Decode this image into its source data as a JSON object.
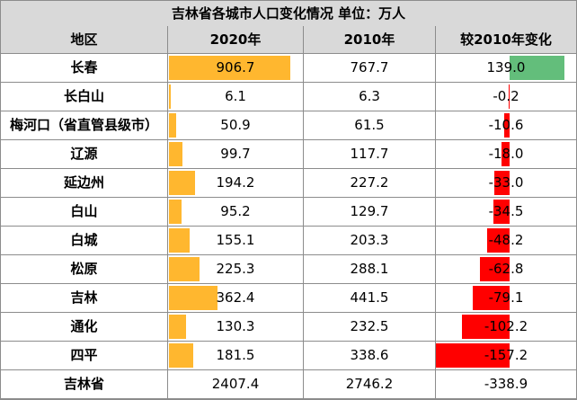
{
  "title": "吉林省各城市人口变化情况  单位：万人",
  "headers": [
    "地区",
    "2020年",
    "2010年",
    "较2010年变化"
  ],
  "rows": [
    {
      "region": "长春",
      "y2020": "906.7",
      "y2010": "767.7",
      "change": "139.0",
      "bar2020": 906.7,
      "barChange": 139.0
    },
    {
      "region": "长白山",
      "y2020": "6.1",
      "y2010": "6.3",
      "change": "-0.2",
      "bar2020": 6.1,
      "barChange": -0.2
    },
    {
      "region": "梅河口（省直管县级市）",
      "y2020": "50.9",
      "y2010": "61.5",
      "change": "-10.6",
      "bar2020": 50.9,
      "barChange": -10.6
    },
    {
      "region": "辽源",
      "y2020": "99.7",
      "y2010": "117.7",
      "change": "-18.0",
      "bar2020": 99.7,
      "barChange": -18.0
    },
    {
      "region": "延边州",
      "y2020": "194.2",
      "y2010": "227.2",
      "change": "-33.0",
      "bar2020": 194.2,
      "barChange": -33.0
    },
    {
      "region": "白山",
      "y2020": "95.2",
      "y2010": "129.7",
      "change": "-34.5",
      "bar2020": 95.2,
      "barChange": -34.5
    },
    {
      "region": "白城",
      "y2020": "155.1",
      "y2010": "203.3",
      "change": "-48.2",
      "bar2020": 155.1,
      "barChange": -48.2
    },
    {
      "region": "松原",
      "y2020": "225.3",
      "y2010": "288.1",
      "change": "-62.8",
      "bar2020": 225.3,
      "barChange": -62.8
    },
    {
      "region": "吉林",
      "y2020": "362.4",
      "y2010": "441.5",
      "change": "-79.1",
      "bar2020": 362.4,
      "barChange": -79.1
    },
    {
      "region": "通化",
      "y2020": "130.3",
      "y2010": "232.5",
      "change": "-102.2",
      "bar2020": 130.3,
      "barChange": -102.2
    },
    {
      "region": "四平",
      "y2020": "181.5",
      "y2010": "338.6",
      "change": "-157.2",
      "bar2020": 181.5,
      "barChange": -157.2
    }
  ],
  "total": {
    "region": "吉林省",
    "y2020": "2407.4",
    "y2010": "2746.2",
    "change": "-338.9"
  },
  "colors": {
    "header_bg": "#d9d9d9",
    "bar_2020": "#ffb72f",
    "bar_negative": "#ff0000",
    "bar_positive": "#63be7b",
    "grid": "#8c8c8c"
  }
}
